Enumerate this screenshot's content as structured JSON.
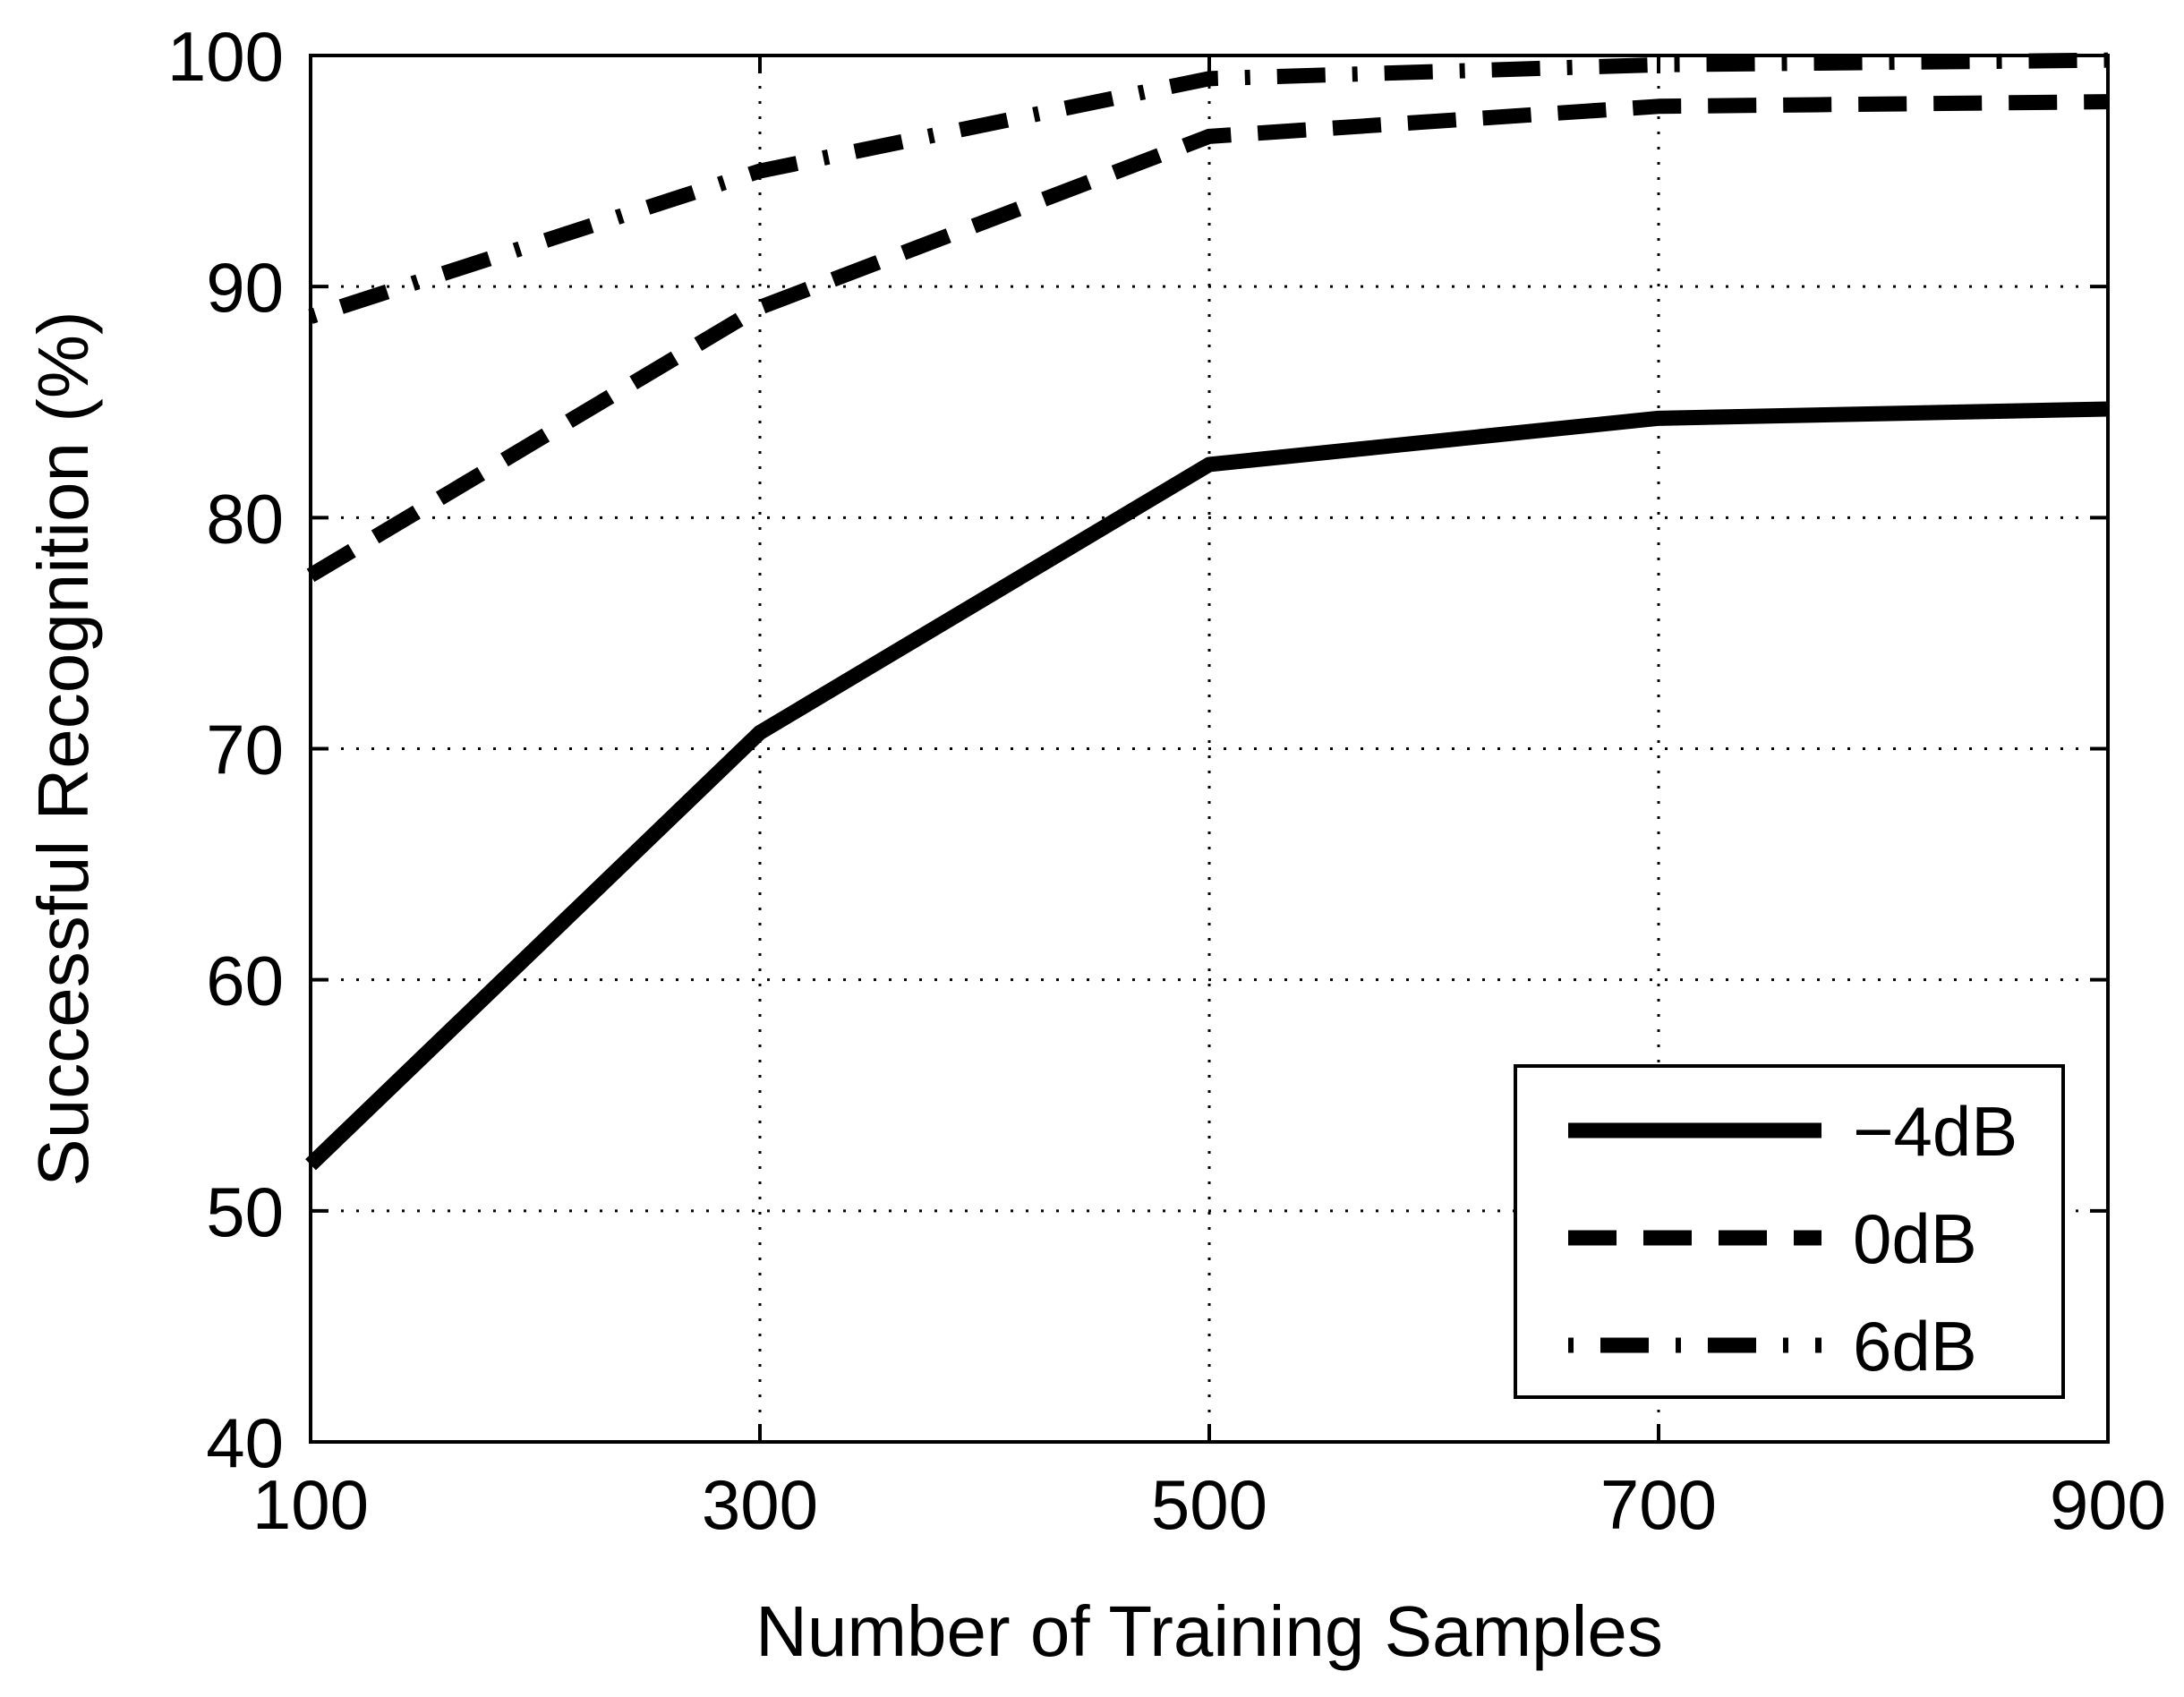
{
  "chart_data": {
    "type": "line",
    "title": "",
    "xlabel": "Number of Training Samples",
    "ylabel": "Successful Recognition (%)",
    "xlim": [
      100,
      900
    ],
    "ylim": [
      40,
      100
    ],
    "x_ticks": [
      100,
      300,
      500,
      700,
      900
    ],
    "y_ticks": [
      40,
      50,
      60,
      70,
      80,
      90,
      100
    ],
    "x_tick_labels": [
      "100",
      "300",
      "500",
      "700",
      "900"
    ],
    "y_tick_labels": [
      "40",
      "50",
      "60",
      "70",
      "80",
      "90",
      "100"
    ],
    "grid": true,
    "legend_position": "bottom-right",
    "colors": {
      "line": "#000000",
      "grid": "#000000",
      "background": "#ffffff"
    },
    "x": [
      100,
      300,
      500,
      700,
      900
    ],
    "series": [
      {
        "name": "−4dB",
        "style": "solid",
        "values": [
          52.0,
          70.7,
          82.3,
          84.3,
          84.7
        ]
      },
      {
        "name": "0dB",
        "style": "dashed",
        "values": [
          77.5,
          89.1,
          96.5,
          97.8,
          98.0
        ]
      },
      {
        "name": "6dB",
        "style": "dashdot",
        "values": [
          88.7,
          95.0,
          99.0,
          99.6,
          99.8
        ]
      }
    ]
  }
}
